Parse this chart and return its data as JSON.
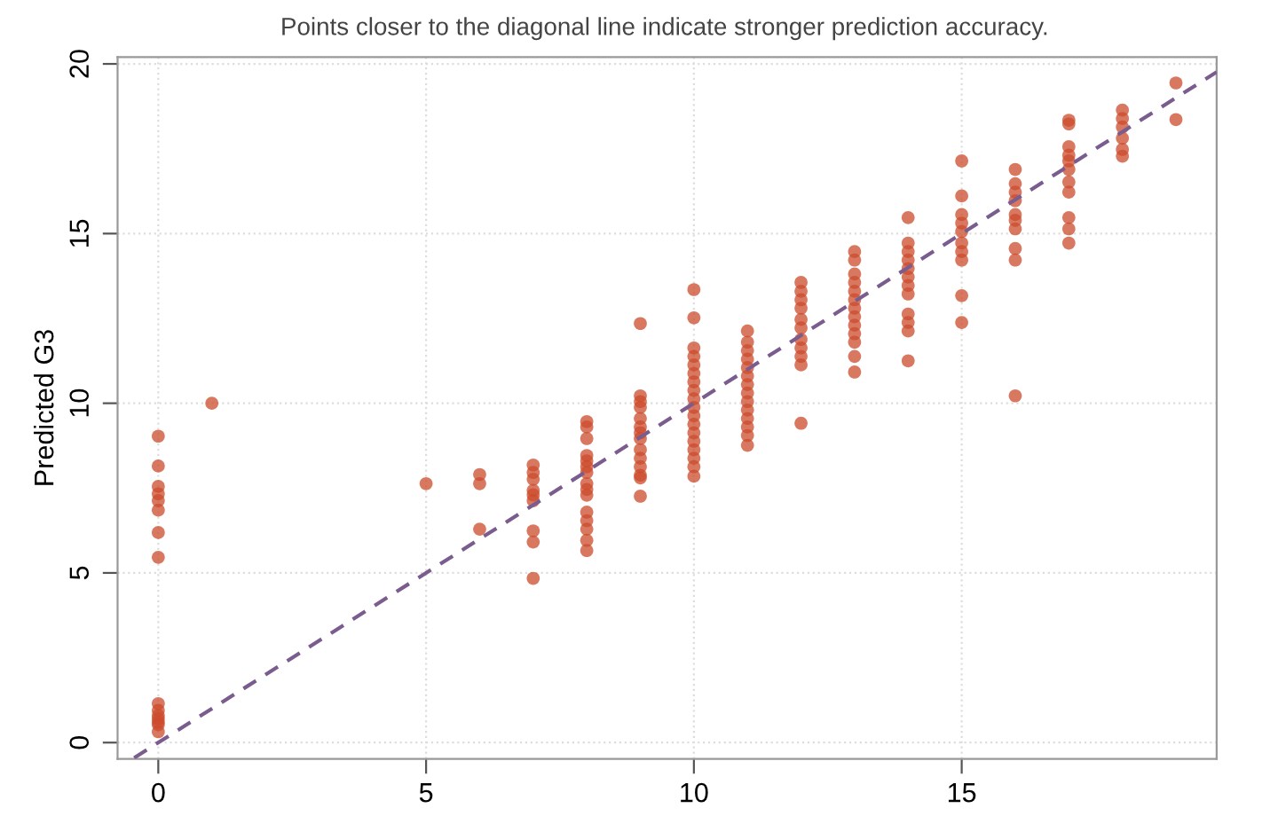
{
  "chart_data": {
    "type": "scatter",
    "subtitle": "Points closer to the diagonal line indicate stronger prediction accuracy.",
    "ylabel": "Predicted G3",
    "xlim": [
      -0.76,
      19.76
    ],
    "ylim": [
      -0.48,
      20.2
    ],
    "xticks": [
      0,
      5,
      10,
      15
    ],
    "yticks": [
      0,
      5,
      10,
      15,
      20
    ],
    "grid": true,
    "series": [
      {
        "color": "#cc4b2c",
        "marker": "circle",
        "x": [
          0,
          0,
          0,
          0,
          0,
          0,
          0,
          0,
          0,
          0,
          0,
          0,
          0,
          0,
          0,
          1,
          5,
          6,
          6,
          6,
          7,
          7,
          7,
          7,
          7,
          7,
          7,
          7,
          7,
          8,
          8,
          8,
          8,
          8,
          8,
          8,
          8,
          8,
          8,
          8,
          8,
          8,
          8,
          8,
          9,
          9,
          9,
          9,
          9,
          9,
          9,
          9,
          9,
          9,
          9,
          9,
          9,
          9,
          10,
          10,
          10,
          10,
          10,
          10,
          10,
          10,
          10,
          10,
          10,
          10,
          10,
          10,
          10,
          10,
          10,
          10,
          11,
          11,
          11,
          11,
          11,
          11,
          11,
          11,
          11,
          11,
          11,
          11,
          11,
          11,
          12,
          12,
          12,
          12,
          12,
          12,
          12,
          12,
          12,
          12,
          12,
          13,
          13,
          13,
          13,
          13,
          13,
          13,
          13,
          13,
          13,
          13,
          13,
          13,
          14,
          14,
          14,
          14,
          14,
          14,
          14,
          14,
          14,
          14,
          14,
          14,
          15,
          15,
          15,
          15,
          15,
          15,
          15,
          15,
          15,
          15,
          16,
          16,
          16,
          16,
          16,
          16,
          16,
          16,
          16,
          16,
          17,
          17,
          17,
          17,
          17,
          17,
          17,
          17,
          17,
          17,
          17,
          18,
          18,
          18,
          18,
          18,
          18,
          19,
          19
        ],
        "values": [
          9.03,
          8.15,
          7.55,
          7.33,
          7.13,
          6.85,
          6.19,
          5.46,
          1.15,
          0.95,
          0.8,
          0.7,
          0.6,
          0.53,
          0.32,
          10.0,
          7.63,
          7.9,
          7.63,
          6.29,
          8.18,
          7.96,
          7.76,
          7.43,
          7.3,
          7.13,
          6.24,
          5.91,
          4.84,
          9.46,
          9.3,
          8.96,
          8.46,
          8.3,
          8.13,
          7.96,
          7.63,
          7.46,
          7.29,
          6.79,
          6.54,
          6.29,
          5.96,
          5.66,
          12.35,
          10.22,
          10.05,
          9.88,
          9.55,
          9.3,
          9.13,
          8.96,
          8.63,
          8.38,
          8.13,
          7.88,
          7.8,
          7.26,
          13.35,
          12.52,
          11.63,
          11.38,
          11.13,
          10.88,
          10.63,
          10.38,
          10.13,
          9.88,
          9.63,
          9.38,
          9.13,
          8.88,
          8.63,
          8.38,
          8.13,
          7.85,
          12.13,
          11.8,
          11.55,
          11.3,
          11.05,
          10.8,
          10.55,
          10.3,
          10.05,
          9.8,
          9.55,
          9.3,
          9.05,
          8.76,
          13.56,
          13.3,
          13.05,
          12.8,
          12.47,
          12.22,
          11.88,
          11.63,
          11.38,
          11.13,
          9.41,
          14.47,
          14.22,
          13.81,
          13.56,
          13.3,
          13.05,
          12.8,
          12.55,
          12.3,
          12.05,
          11.8,
          11.38,
          10.92,
          15.47,
          14.72,
          14.47,
          14.22,
          13.97,
          13.72,
          13.47,
          13.22,
          12.63,
          12.38,
          12.13,
          11.25,
          17.14,
          16.11,
          15.56,
          15.31,
          15.06,
          14.72,
          14.47,
          14.22,
          13.17,
          12.38,
          16.89,
          16.47,
          16.22,
          15.97,
          15.56,
          15.39,
          15.14,
          14.56,
          14.22,
          10.22,
          18.34,
          18.23,
          17.56,
          17.31,
          17.14,
          16.89,
          16.52,
          16.22,
          15.47,
          15.14,
          14.72,
          18.64,
          18.39,
          18.14,
          17.81,
          17.48,
          17.28,
          19.44,
          18.36
        ]
      },
      {
        "type": "line",
        "color": "#7a5c8e",
        "line_style": "dashed",
        "x": [
          -0.45,
          19.76
        ],
        "values": [
          -0.45,
          19.76
        ]
      }
    ]
  }
}
